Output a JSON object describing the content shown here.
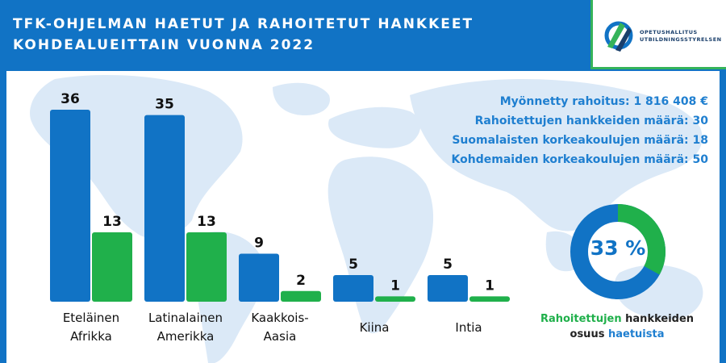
{
  "header": {
    "title_line1": "TFK-OHJELMAN HAETUT JA RAHOITETUT HANKKEET",
    "title_line2": "KOHDEALUEITTAIN VUONNA 2022"
  },
  "logo": {
    "text_line1": "OPETUSHALLITUS",
    "text_line2": "UTBILDNINGSSTYRELSEN"
  },
  "stats": [
    "Myönnetty rahoitus: 1 816 408 €",
    "Rahoitettujen hankkeiden määrä: 30",
    "Suomalaisten korkeakoulujen määrä: 18",
    "Kohdemaiden korkeakoulujen määrä: 50"
  ],
  "donut": {
    "value": 33,
    "label": "33 %",
    "caption_part1": "Rahoitettujen",
    "caption_part2": "hankkeiden",
    "caption_part3": "osuus",
    "caption_part4": "haetuista",
    "color_filled": "#20b04b",
    "color_rest": "#1173c5"
  },
  "chart_data": {
    "type": "bar",
    "categories": [
      [
        "Eteläinen",
        "Afrikka"
      ],
      [
        "Latinalainen",
        "Amerikka"
      ],
      [
        "Kaakkois-",
        "Aasia"
      ],
      [
        "Kiina"
      ],
      [
        "Intia"
      ]
    ],
    "series": [
      {
        "values": [
          36,
          35,
          9,
          5,
          5
        ],
        "color": "#1173c5"
      },
      {
        "values": [
          13,
          13,
          2,
          1,
          1
        ],
        "color": "#20b04b"
      }
    ],
    "ylim": [
      0,
      36
    ],
    "grid": false,
    "legend": "none"
  }
}
